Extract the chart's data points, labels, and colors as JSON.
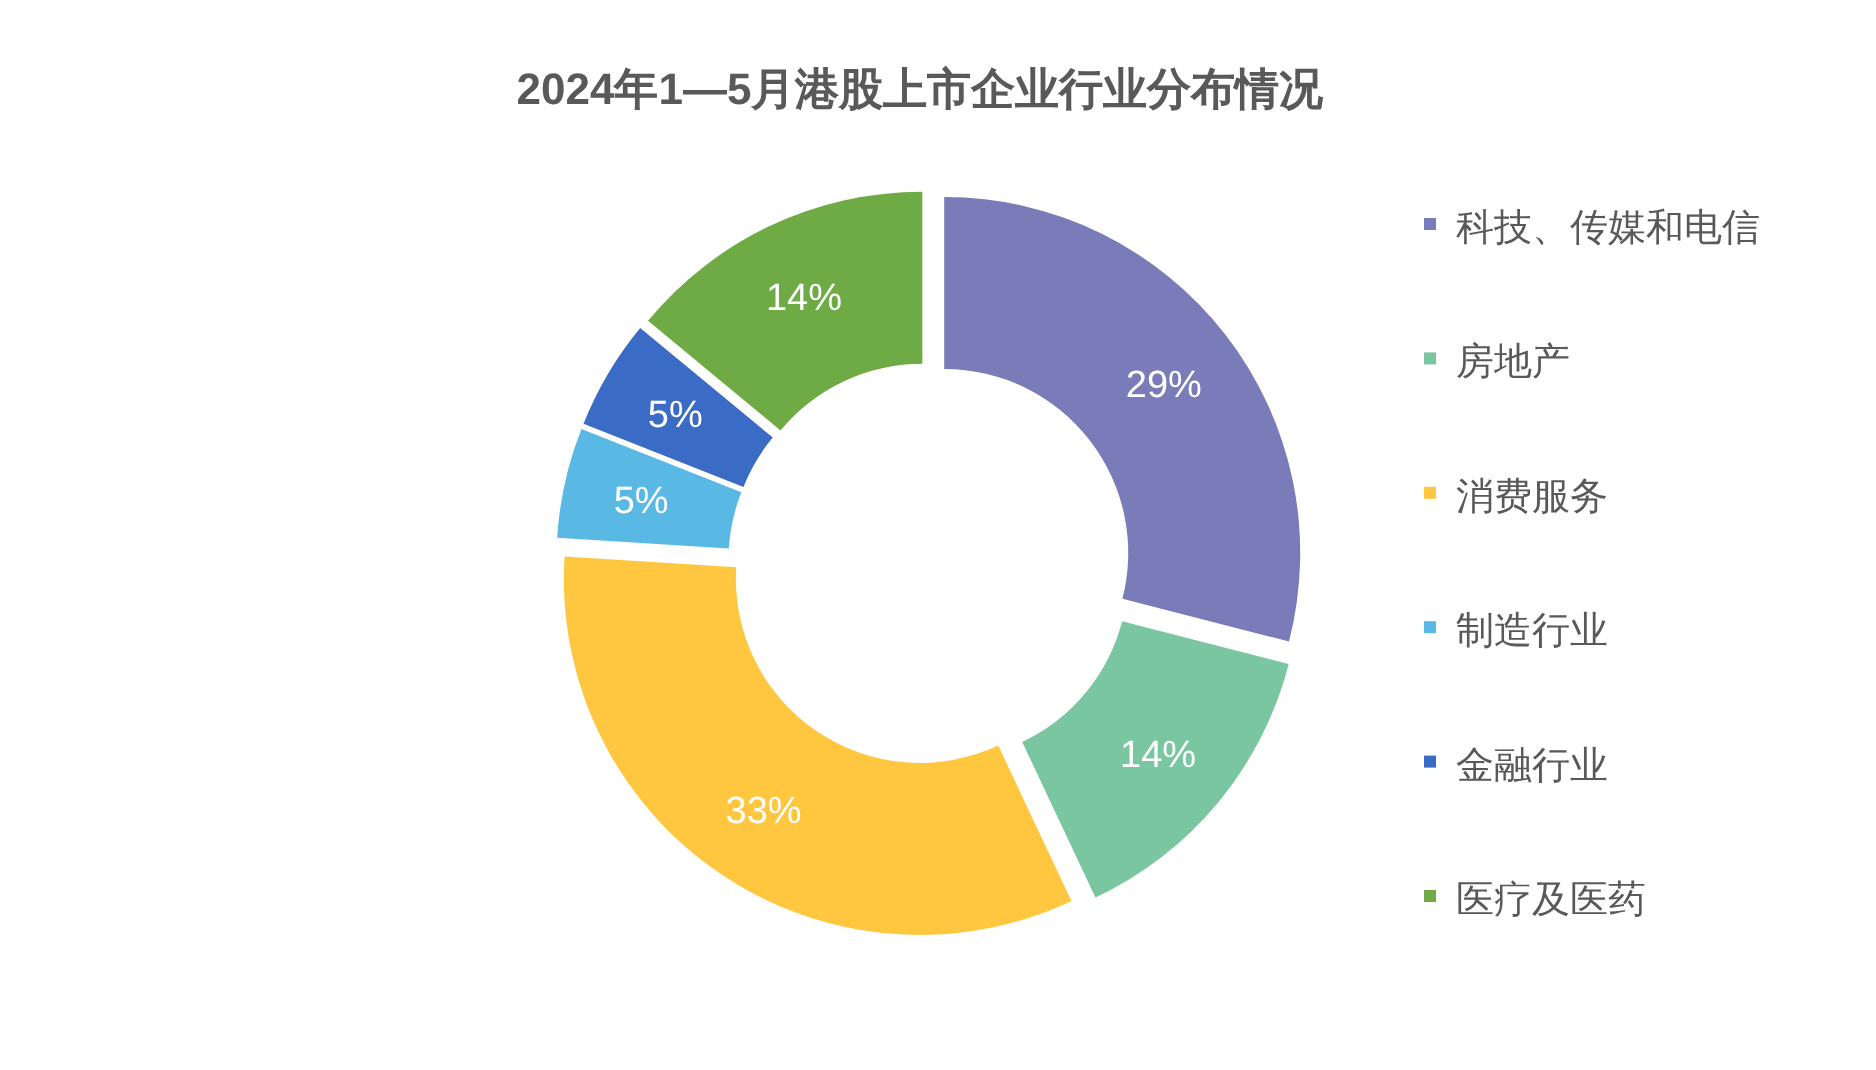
{
  "chart_data": {
    "type": "donut",
    "title": "2024年1—5月港股上市企业行业分布情况",
    "categories": [
      "科技、传媒和电信",
      "房地产",
      "消费服务",
      "制造行业",
      "金融行业",
      "医疗及医药"
    ],
    "values": [
      29,
      14,
      33,
      5,
      5,
      14
    ],
    "value_labels": [
      "29%",
      "14%",
      "33%",
      "5%",
      "5%",
      "14%"
    ],
    "colors": [
      "#7a7bb9",
      "#7ac6a0",
      "#ffc73f",
      "#5ab8e5",
      "#3a6cc6",
      "#6fab45"
    ],
    "legend": "right"
  }
}
